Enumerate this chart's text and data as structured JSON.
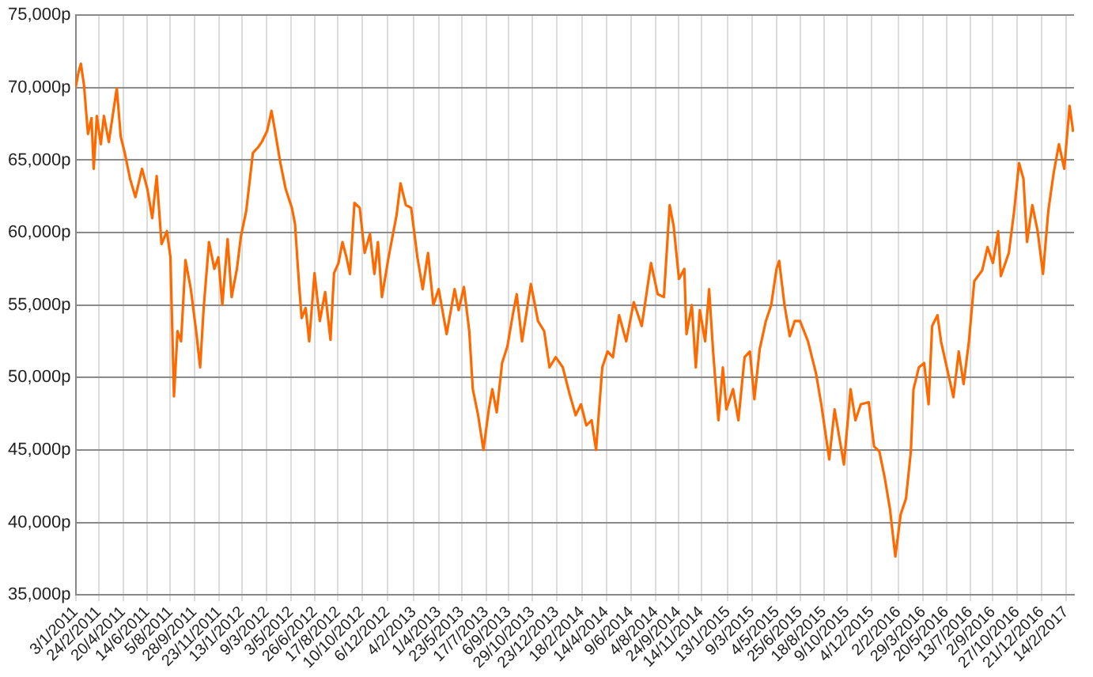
{
  "chart_data": {
    "type": "line",
    "grid": true,
    "legend": false,
    "marker": "none",
    "line_style": "solid",
    "xlim": [
      "2011-01-03",
      "2017-03-04"
    ],
    "ylim": [
      35000,
      75000
    ],
    "yticks": [
      {
        "value": 35000,
        "label": "35,000p"
      },
      {
        "value": 40000,
        "label": "40,000p"
      },
      {
        "value": 45000,
        "label": "45,000p"
      },
      {
        "value": 50000,
        "label": "50,000p"
      },
      {
        "value": 55000,
        "label": "55,000p"
      },
      {
        "value": 60000,
        "label": "60,000p"
      },
      {
        "value": 65000,
        "label": "65,000p"
      },
      {
        "value": 70000,
        "label": "70,000p"
      },
      {
        "value": 75000,
        "label": "75,000p"
      }
    ],
    "xticks": [
      {
        "value": "2011-01-03",
        "label": "3/1/2011"
      },
      {
        "value": "2011-02-24",
        "label": "24/2/2011"
      },
      {
        "value": "2011-04-20",
        "label": "20/4/2011"
      },
      {
        "value": "2011-06-14",
        "label": "14/6/2011"
      },
      {
        "value": "2011-08-05",
        "label": "5/8/2011"
      },
      {
        "value": "2011-09-28",
        "label": "28/9/2011"
      },
      {
        "value": "2011-11-23",
        "label": "23/11/2011"
      },
      {
        "value": "2012-01-13",
        "label": "13/1/2012"
      },
      {
        "value": "2012-03-09",
        "label": "9/3/2012"
      },
      {
        "value": "2012-05-03",
        "label": "3/5/2012"
      },
      {
        "value": "2012-06-26",
        "label": "26/6/2012"
      },
      {
        "value": "2012-08-17",
        "label": "17/8/2012"
      },
      {
        "value": "2012-10-10",
        "label": "10/10/2012"
      },
      {
        "value": "2012-12-06",
        "label": "6/12/2012"
      },
      {
        "value": "2013-02-04",
        "label": "4/2/2013"
      },
      {
        "value": "2013-04-01",
        "label": "1/4/2013"
      },
      {
        "value": "2013-05-23",
        "label": "23/5/2013"
      },
      {
        "value": "2013-07-17",
        "label": "17/7/2013"
      },
      {
        "value": "2013-09-06",
        "label": "6/9/2013"
      },
      {
        "value": "2013-10-29",
        "label": "29/10/2013"
      },
      {
        "value": "2013-12-23",
        "label": "23/12/2013"
      },
      {
        "value": "2014-02-18",
        "label": "18/2/2014"
      },
      {
        "value": "2014-04-14",
        "label": "14/4/2014"
      },
      {
        "value": "2014-06-09",
        "label": "9/6/2014"
      },
      {
        "value": "2014-08-04",
        "label": "4/8/2014"
      },
      {
        "value": "2014-09-24",
        "label": "24/9/2014"
      },
      {
        "value": "2014-11-14",
        "label": "14/11/2014"
      },
      {
        "value": "2015-01-13",
        "label": "13/1/2015"
      },
      {
        "value": "2015-03-09",
        "label": "9/3/2015"
      },
      {
        "value": "2015-05-04",
        "label": "4/5/2015"
      },
      {
        "value": "2015-06-25",
        "label": "25/6/2015"
      },
      {
        "value": "2015-08-18",
        "label": "18/8/2015"
      },
      {
        "value": "2015-10-09",
        "label": "9/10/2015"
      },
      {
        "value": "2015-12-04",
        "label": "4/12/2015"
      },
      {
        "value": "2016-02-02",
        "label": "2/2/2016"
      },
      {
        "value": "2016-03-29",
        "label": "29/3/2016"
      },
      {
        "value": "2016-05-20",
        "label": "20/5/2016"
      },
      {
        "value": "2016-07-13",
        "label": "13/7/2016"
      },
      {
        "value": "2016-09-02",
        "label": "2/9/2016"
      },
      {
        "value": "2016-10-27",
        "label": "27/10/2016"
      },
      {
        "value": "2016-12-21",
        "label": "21/12/2016"
      },
      {
        "value": "2017-02-14",
        "label": "14/2/2017"
      }
    ],
    "series": [
      {
        "color": "#ff6a00",
        "x": [
          "2011-01-03",
          "2011-01-10",
          "2011-01-15",
          "2011-01-22",
          "2011-01-31",
          "2011-02-08",
          "2011-02-13",
          "2011-02-20",
          "2011-03-01",
          "2011-03-08",
          "2011-03-19",
          "2011-03-27",
          "2011-04-06",
          "2011-04-15",
          "2011-04-24",
          "2011-05-06",
          "2011-05-18",
          "2011-06-02",
          "2011-06-14",
          "2011-06-25",
          "2011-07-05",
          "2011-07-16",
          "2011-07-28",
          "2011-08-05",
          "2011-08-13",
          "2011-08-21",
          "2011-08-29",
          "2011-09-08",
          "2011-09-20",
          "2011-10-02",
          "2011-10-11",
          "2011-10-19",
          "2011-10-31",
          "2011-11-12",
          "2011-11-21",
          "2011-11-30",
          "2011-12-12",
          "2011-12-21",
          "2012-01-02",
          "2012-01-11",
          "2012-01-23",
          "2012-02-07",
          "2012-02-19",
          "2012-02-27",
          "2012-03-10",
          "2012-03-20",
          "2012-03-28",
          "2012-04-09",
          "2012-04-21",
          "2012-05-05",
          "2012-05-12",
          "2012-05-21",
          "2012-05-27",
          "2012-06-05",
          "2012-06-13",
          "2012-06-25",
          "2012-07-07",
          "2012-07-19",
          "2012-07-31",
          "2012-08-08",
          "2012-08-18",
          "2012-08-27",
          "2012-09-05",
          "2012-09-13",
          "2012-09-23",
          "2012-10-05",
          "2012-10-16",
          "2012-10-28",
          "2012-11-07",
          "2012-11-15",
          "2012-11-24",
          "2012-12-09",
          "2012-12-27",
          "2013-01-05",
          "2013-01-17",
          "2013-01-29",
          "2013-02-12",
          "2013-02-24",
          "2013-03-08",
          "2013-03-20",
          "2013-04-01",
          "2013-04-19",
          "2013-05-07",
          "2013-05-16",
          "2013-05-28",
          "2013-06-09",
          "2013-06-17",
          "2013-06-29",
          "2013-07-11",
          "2013-07-23",
          "2013-07-31",
          "2013-08-10",
          "2013-08-22",
          "2013-09-03",
          "2013-09-15",
          "2013-09-24",
          "2013-10-06",
          "2013-10-26",
          "2013-11-11",
          "2013-11-25",
          "2013-12-07",
          "2013-12-21",
          "2014-01-06",
          "2014-01-21",
          "2014-02-04",
          "2014-02-16",
          "2014-02-28",
          "2014-03-12",
          "2014-03-22",
          "2014-04-05",
          "2014-04-17",
          "2014-04-29",
          "2014-05-13",
          "2014-05-29",
          "2014-06-15",
          "2014-07-03",
          "2014-07-24",
          "2014-08-08",
          "2014-08-22",
          "2014-09-04",
          "2014-09-13",
          "2014-09-25",
          "2014-10-07",
          "2014-10-12",
          "2014-10-24",
          "2014-11-02",
          "2014-11-11",
          "2014-11-23",
          "2014-12-02",
          "2014-12-11",
          "2014-12-23",
          "2015-01-02",
          "2015-01-10",
          "2015-01-25",
          "2015-02-06",
          "2015-02-20",
          "2015-03-04",
          "2015-03-14",
          "2015-03-26",
          "2015-04-09",
          "2015-04-21",
          "2015-05-03",
          "2015-05-09",
          "2015-05-21",
          "2015-06-02",
          "2015-06-13",
          "2015-06-25",
          "2015-07-13",
          "2015-07-31",
          "2015-08-12",
          "2015-08-30",
          "2015-09-11",
          "2015-10-02",
          "2015-10-17",
          "2015-10-28",
          "2015-11-09",
          "2015-11-27",
          "2015-12-09",
          "2015-12-21",
          "2016-01-02",
          "2016-01-14",
          "2016-01-26",
          "2016-02-07",
          "2016-02-19",
          "2016-03-01",
          "2016-03-07",
          "2016-03-19",
          "2016-03-31",
          "2016-04-10",
          "2016-04-18",
          "2016-04-30",
          "2016-05-08",
          "2016-05-24",
          "2016-06-05",
          "2016-06-17",
          "2016-06-28",
          "2016-07-10",
          "2016-07-22",
          "2016-08-09",
          "2016-08-21",
          "2016-09-02",
          "2016-09-14",
          "2016-09-20",
          "2016-10-08",
          "2016-10-20",
          "2016-10-31",
          "2016-11-10",
          "2016-11-18",
          "2016-11-30",
          "2016-12-12",
          "2016-12-24",
          "2017-01-05",
          "2017-01-17",
          "2017-01-29",
          "2017-02-10",
          "2017-02-22",
          "2017-03-02"
        ],
        "values": [
          70000,
          71100,
          71650,
          70200,
          66800,
          67900,
          64400,
          68050,
          66100,
          68050,
          66250,
          67900,
          69950,
          66600,
          65500,
          63700,
          62450,
          64400,
          63000,
          61000,
          63900,
          59200,
          60100,
          58300,
          48700,
          53200,
          52500,
          58100,
          56100,
          53200,
          50700,
          54800,
          59350,
          57500,
          58300,
          55000,
          59550,
          55550,
          57500,
          59750,
          61500,
          65500,
          65900,
          66250,
          67000,
          68400,
          67000,
          64800,
          63000,
          61700,
          60600,
          56450,
          54100,
          54800,
          52500,
          57200,
          53900,
          55900,
          52600,
          57200,
          57900,
          59350,
          58300,
          57150,
          62050,
          61700,
          58600,
          59900,
          57150,
          59350,
          55550,
          58300,
          61200,
          63400,
          61900,
          61700,
          58300,
          56100,
          58600,
          55000,
          56100,
          53000,
          56100,
          54650,
          56250,
          53200,
          49200,
          47400,
          45000,
          47800,
          49200,
          47600,
          51000,
          52150,
          54300,
          55750,
          52500,
          56450,
          53900,
          53200,
          50700,
          51400,
          50700,
          48900,
          47400,
          48150,
          46700,
          47050,
          45000,
          50700,
          51800,
          51400,
          54300,
          52500,
          55200,
          53550,
          57900,
          55750,
          55550,
          61900,
          60450,
          56800,
          57500,
          53000,
          55000,
          50700,
          54650,
          52500,
          56100,
          51800,
          47050,
          50700,
          47800,
          49200,
          47050,
          51400,
          51800,
          48500,
          51950,
          53900,
          55000,
          57500,
          58050,
          55000,
          52850,
          53900,
          53900,
          52500,
          50300,
          48150,
          44350,
          47800,
          44000,
          49200,
          47050,
          48150,
          48300,
          45250,
          44900,
          43100,
          40900,
          37650,
          40550,
          41650,
          44900,
          49200,
          50700,
          51000,
          48150,
          53550,
          54300,
          52500,
          50300,
          48650,
          51800,
          49550,
          52500,
          56650,
          57400,
          59000,
          57900,
          60100,
          57000,
          58600,
          61500,
          64800,
          63700,
          59350,
          61900,
          60100,
          57150,
          61500,
          64100,
          66100,
          64400,
          68750,
          66950
        ]
      }
    ]
  }
}
